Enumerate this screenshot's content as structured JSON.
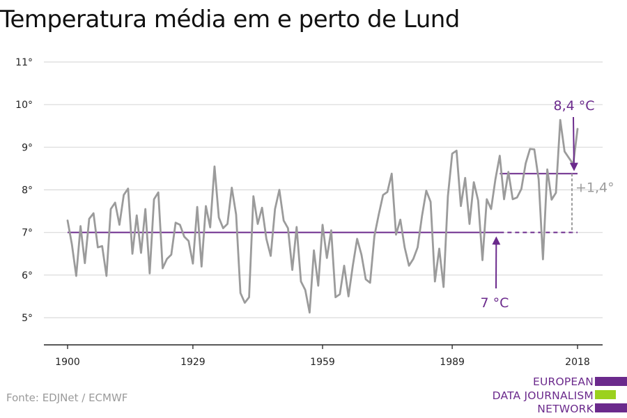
{
  "title": "Temperatura média em e perto de Lund",
  "source": "Fonte: EDJNet / ECMWF",
  "logo": {
    "lines": [
      "EUROPEAN",
      "DATA JOURNALISM",
      "NETWORK"
    ],
    "bar_colors": [
      "#6b2a8c",
      "#9bd11e",
      "#6b2a8c"
    ]
  },
  "colors": {
    "series": "#9b9b9b",
    "accent": "#6b2a8c",
    "grid": "#d9d9d9",
    "axis": "#222222",
    "diff": "#9b9b9b"
  },
  "chart_data": {
    "type": "line",
    "title": "Temperatura média em e perto de Lund",
    "xlabel": "",
    "ylabel": "",
    "xlim": [
      1900,
      2018
    ],
    "ylim": [
      5,
      11
    ],
    "xticks": [
      1900,
      1929,
      1959,
      1989,
      2018
    ],
    "xtick_labels": [
      "1900",
      "1929",
      "1959",
      "1989",
      "2018"
    ],
    "yticks": [
      5,
      6,
      7,
      8,
      9,
      10,
      11
    ],
    "ytick_labels": [
      "5°",
      "6°",
      "7°",
      "8°",
      "9°",
      "10°",
      "11°"
    ],
    "grid": true,
    "series": [
      {
        "x_start": 1900,
        "values": [
          7.28,
          6.72,
          5.98,
          7.15,
          6.28,
          7.32,
          7.45,
          6.65,
          6.68,
          5.98,
          7.55,
          7.7,
          7.18,
          7.88,
          8.03,
          6.5,
          7.4,
          6.52,
          7.55,
          6.04,
          7.78,
          7.94,
          6.16,
          6.38,
          6.48,
          7.23,
          7.18,
          6.9,
          6.8,
          6.27,
          7.6,
          6.2,
          7.62,
          7.12,
          8.55,
          7.35,
          7.1,
          7.2,
          8.05,
          7.42,
          5.58,
          5.35,
          5.48,
          7.85,
          7.2,
          7.58,
          6.85,
          6.45,
          7.55,
          8.0,
          7.28,
          7.1,
          6.12,
          7.13,
          5.85,
          5.65,
          5.12,
          6.58,
          5.75,
          7.18,
          6.4,
          7.05,
          5.48,
          5.55,
          6.22,
          5.5,
          6.22,
          6.85,
          6.48,
          5.9,
          5.82,
          6.92,
          7.42,
          7.88,
          7.95,
          8.38,
          6.95,
          7.3,
          6.65,
          6.22,
          6.38,
          6.65,
          7.38,
          7.98,
          7.72,
          5.85,
          6.62,
          5.72,
          7.85,
          8.85,
          8.92,
          7.62,
          8.28,
          7.2,
          8.18,
          7.75,
          6.35,
          7.78,
          7.55,
          8.25,
          8.8,
          7.78,
          8.42,
          7.78,
          7.82,
          8.02,
          8.62,
          8.96,
          8.95,
          8.25,
          6.37,
          8.48,
          7.77,
          7.93,
          9.64,
          8.9,
          8.75,
          8.6,
          9.43
        ]
      }
    ],
    "reference_lines": {
      "baseline": {
        "value": 7.0,
        "from": 1900,
        "to": 2000,
        "dashed_to": 2018,
        "label": "7 °C"
      },
      "recent": {
        "value": 8.38,
        "from": 2000,
        "to": 2018,
        "label": "8,4 °C"
      },
      "difference_label": "+1,4°"
    }
  }
}
